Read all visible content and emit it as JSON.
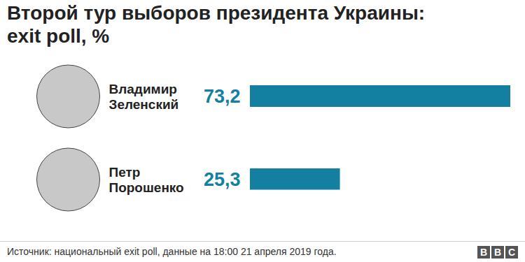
{
  "chart_data": {
    "type": "bar",
    "title": "Второй тур выборов президента Украины:\nexit poll, %",
    "categories": [
      "Владимир\nЗеленский",
      "Петр\nПорошенко"
    ],
    "values": [
      73.2,
      25.3
    ],
    "value_labels": [
      "73,2",
      "25,3"
    ],
    "color": "#1380a1",
    "orientation": "horizontal",
    "xlim": [
      0,
      73.2
    ],
    "data_labels": true,
    "tick_labels": false,
    "source": "Источник: национальный exit poll, данные на 18:00 21 апреля 2019 года.",
    "logo": "BBC"
  }
}
